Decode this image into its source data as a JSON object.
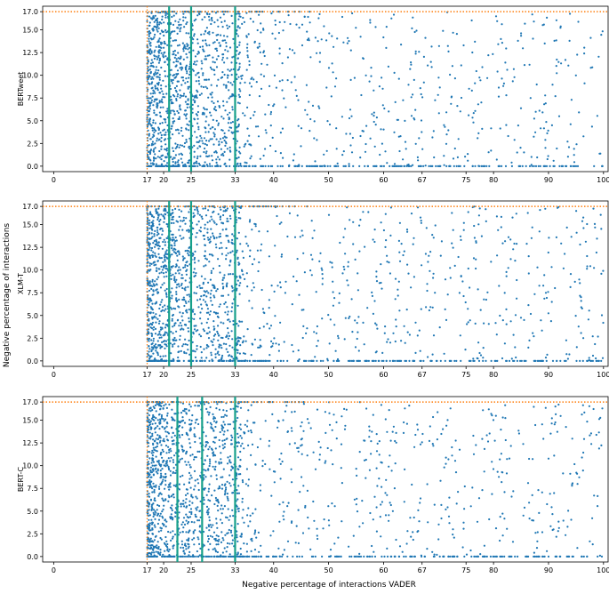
{
  "figure": {
    "xlabel": "Negative percentage of interactions VADER",
    "ylabel": "Negative percentage of interactions"
  },
  "chart_data": [
    {
      "type": "scatter",
      "panel_label": "BERTweet",
      "x_ticks": [
        "0",
        "17",
        "20",
        "25",
        "33",
        "40",
        "50",
        "60",
        "67",
        "75",
        "80",
        "90",
        "100"
      ],
      "y_ticks": [
        "0.0",
        "2.5",
        "5.0",
        "7.5",
        "10.0",
        "12.5",
        "15.0",
        "17.0"
      ],
      "xlim": [
        -2,
        101
      ],
      "ylim": [
        -0.6,
        17.6
      ],
      "grid": false,
      "point_color": "#1f77b4",
      "threshold_lines": {
        "horizontal_y": 17,
        "vertical_x": 17,
        "color": "#ff7f0e",
        "style": "dotted"
      },
      "vertical_lines": {
        "x": [
          21,
          25,
          33
        ],
        "color": "#17a08a"
      }
    },
    {
      "type": "scatter",
      "panel_label": "XLM-T",
      "x_ticks": [
        "0",
        "17",
        "20",
        "25",
        "33",
        "40",
        "50",
        "60",
        "67",
        "75",
        "80",
        "90",
        "100"
      ],
      "y_ticks": [
        "0.0",
        "2.5",
        "5.0",
        "7.5",
        "10.0",
        "12.5",
        "15.0",
        "17.0"
      ],
      "xlim": [
        -2,
        101
      ],
      "ylim": [
        -0.6,
        17.6
      ],
      "grid": false,
      "point_color": "#1f77b4",
      "threshold_lines": {
        "horizontal_y": 17,
        "vertical_x": 17,
        "color": "#ff7f0e",
        "style": "dotted"
      },
      "vertical_lines": {
        "x": [
          21,
          25,
          33
        ],
        "color": "#17a08a"
      }
    },
    {
      "type": "scatter",
      "panel_label": "BERT-C",
      "x_ticks": [
        "0",
        "17",
        "20",
        "25",
        "33",
        "40",
        "50",
        "60",
        "67",
        "75",
        "80",
        "90",
        "100"
      ],
      "y_ticks": [
        "0.0",
        "2.5",
        "5.0",
        "7.5",
        "10.0",
        "12.5",
        "15.0",
        "17.0"
      ],
      "xlim": [
        -2,
        101
      ],
      "ylim": [
        -0.6,
        17.6
      ],
      "grid": false,
      "point_color": "#1f77b4",
      "threshold_lines": {
        "horizontal_y": 17,
        "vertical_x": 17,
        "color": "#ff7f0e",
        "style": "dotted"
      },
      "vertical_lines": {
        "x": [
          22.5,
          27,
          33
        ],
        "color": "#17a08a"
      }
    }
  ]
}
